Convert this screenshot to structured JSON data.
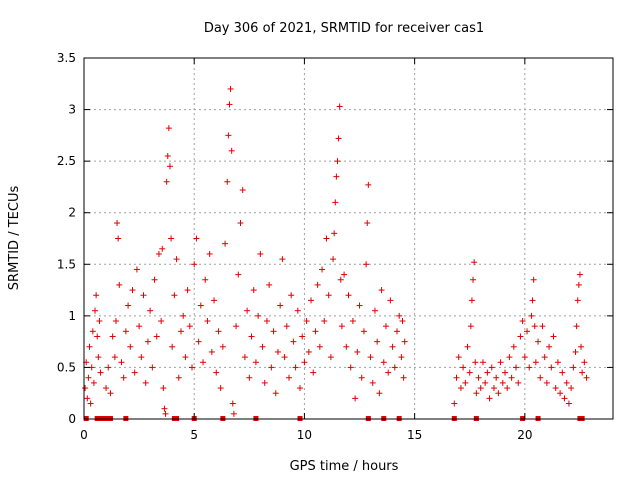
{
  "chart_data": {
    "type": "scatter",
    "title": "Day 306 of 2021, SRMTID for receiver cas1",
    "xlabel": "GPS time / hours",
    "ylabel": "SRMTID / TECUs",
    "xlim": [
      0,
      24
    ],
    "ylim": [
      0,
      3.5
    ],
    "x_ticks": [
      0,
      5,
      10,
      15,
      20
    ],
    "x_tick_labels": [
      "0",
      "5",
      "10",
      "15",
      "20"
    ],
    "y_ticks": [
      0,
      0.5,
      1,
      1.5,
      2,
      2.5,
      3,
      3.5
    ],
    "y_tick_labels": [
      "0",
      "0.5",
      "1",
      "1.5",
      "2",
      "2.5",
      "3",
      "3.5"
    ],
    "grid": true,
    "color": "#e00000",
    "marker": "plus",
    "series": [
      {
        "name": "SRMTID",
        "points": [
          [
            0.05,
            0.3
          ],
          [
            0.1,
            0.55
          ],
          [
            0.15,
            0.2
          ],
          [
            0.2,
            0.4
          ],
          [
            0.25,
            0.7
          ],
          [
            0.3,
            0.15
          ],
          [
            0.35,
            0.5
          ],
          [
            0.4,
            0.85
          ],
          [
            0.45,
            0.35
          ],
          [
            0.5,
            1.05
          ],
          [
            0.55,
            1.2
          ],
          [
            0.6,
            0.8
          ],
          [
            0.65,
            0.6
          ],
          [
            0.7,
            0.95
          ],
          [
            0.75,
            0.45
          ],
          [
            1.0,
            0.3
          ],
          [
            1.1,
            0.5
          ],
          [
            1.2,
            0.25
          ],
          [
            1.3,
            0.8
          ],
          [
            1.4,
            0.6
          ],
          [
            1.45,
            0.95
          ],
          [
            1.5,
            1.9
          ],
          [
            1.55,
            1.75
          ],
          [
            1.6,
            1.3
          ],
          [
            1.7,
            0.55
          ],
          [
            1.8,
            0.4
          ],
          [
            1.9,
            0.85
          ],
          [
            2.0,
            1.1
          ],
          [
            2.1,
            0.7
          ],
          [
            2.2,
            1.25
          ],
          [
            2.3,
            0.45
          ],
          [
            2.4,
            1.45
          ],
          [
            2.5,
            0.9
          ],
          [
            2.6,
            0.6
          ],
          [
            2.7,
            1.2
          ],
          [
            2.8,
            0.35
          ],
          [
            2.9,
            0.75
          ],
          [
            3.0,
            1.05
          ],
          [
            3.1,
            0.5
          ],
          [
            3.2,
            1.35
          ],
          [
            3.3,
            0.8
          ],
          [
            3.4,
            1.6
          ],
          [
            3.5,
            0.95
          ],
          [
            3.55,
            1.65
          ],
          [
            3.6,
            0.3
          ],
          [
            3.65,
            0.1
          ],
          [
            3.7,
            0.05
          ],
          [
            3.75,
            2.3
          ],
          [
            3.8,
            2.55
          ],
          [
            3.85,
            2.82
          ],
          [
            3.9,
            2.45
          ],
          [
            3.95,
            1.75
          ],
          [
            4.0,
            0.7
          ],
          [
            4.1,
            1.2
          ],
          [
            4.2,
            1.55
          ],
          [
            4.3,
            0.4
          ],
          [
            4.4,
            0.85
          ],
          [
            4.5,
            1.0
          ],
          [
            4.6,
            0.6
          ],
          [
            4.7,
            1.25
          ],
          [
            4.8,
            0.9
          ],
          [
            4.9,
            0.5
          ],
          [
            5.0,
            1.5
          ],
          [
            5.1,
            1.75
          ],
          [
            5.2,
            0.75
          ],
          [
            5.3,
            1.1
          ],
          [
            5.4,
            0.55
          ],
          [
            5.5,
            1.35
          ],
          [
            5.6,
            0.95
          ],
          [
            5.7,
            1.6
          ],
          [
            5.8,
            0.65
          ],
          [
            5.9,
            1.15
          ],
          [
            6.0,
            0.45
          ],
          [
            6.1,
            0.85
          ],
          [
            6.2,
            0.3
          ],
          [
            6.3,
            0.7
          ],
          [
            6.4,
            1.7
          ],
          [
            6.5,
            2.3
          ],
          [
            6.55,
            2.75
          ],
          [
            6.6,
            3.05
          ],
          [
            6.65,
            3.2
          ],
          [
            6.7,
            2.6
          ],
          [
            6.75,
            0.15
          ],
          [
            6.8,
            0.05
          ],
          [
            6.9,
            0.9
          ],
          [
            7.0,
            1.4
          ],
          [
            7.1,
            1.9
          ],
          [
            7.2,
            2.22
          ],
          [
            7.3,
            0.6
          ],
          [
            7.4,
            1.05
          ],
          [
            7.5,
            0.4
          ],
          [
            7.6,
            0.8
          ],
          [
            7.7,
            1.25
          ],
          [
            7.8,
            0.55
          ],
          [
            7.9,
            1.0
          ],
          [
            8.0,
            1.6
          ],
          [
            8.1,
            0.7
          ],
          [
            8.2,
            0.35
          ],
          [
            8.3,
            0.95
          ],
          [
            8.4,
            1.3
          ],
          [
            8.5,
            0.5
          ],
          [
            8.6,
            0.85
          ],
          [
            8.7,
            0.25
          ],
          [
            8.8,
            0.65
          ],
          [
            8.9,
            1.1
          ],
          [
            9.0,
            1.55
          ],
          [
            9.1,
            0.6
          ],
          [
            9.2,
            0.9
          ],
          [
            9.3,
            0.4
          ],
          [
            9.4,
            1.2
          ],
          [
            9.5,
            0.75
          ],
          [
            9.6,
            0.5
          ],
          [
            9.7,
            1.05
          ],
          [
            9.8,
            0.3
          ],
          [
            9.9,
            0.8
          ],
          [
            10.0,
            0.55
          ],
          [
            10.1,
            0.95
          ],
          [
            10.2,
            0.65
          ],
          [
            10.3,
            1.15
          ],
          [
            10.4,
            0.45
          ],
          [
            10.5,
            0.85
          ],
          [
            10.6,
            1.3
          ],
          [
            10.7,
            0.7
          ],
          [
            10.8,
            1.45
          ],
          [
            10.9,
            0.95
          ],
          [
            11.0,
            1.75
          ],
          [
            11.1,
            1.2
          ],
          [
            11.2,
            0.6
          ],
          [
            11.3,
            1.55
          ],
          [
            11.35,
            1.8
          ],
          [
            11.4,
            2.1
          ],
          [
            11.45,
            2.35
          ],
          [
            11.5,
            2.5
          ],
          [
            11.55,
            2.72
          ],
          [
            11.6,
            3.03
          ],
          [
            11.65,
            1.35
          ],
          [
            11.7,
            0.9
          ],
          [
            11.8,
            1.4
          ],
          [
            11.9,
            0.7
          ],
          [
            12.0,
            1.2
          ],
          [
            12.1,
            0.5
          ],
          [
            12.2,
            0.95
          ],
          [
            12.3,
            0.2
          ],
          [
            12.4,
            0.65
          ],
          [
            12.5,
            1.1
          ],
          [
            12.6,
            0.4
          ],
          [
            12.7,
            0.85
          ],
          [
            12.8,
            1.5
          ],
          [
            12.85,
            1.9
          ],
          [
            12.9,
            2.27
          ],
          [
            13.0,
            0.6
          ],
          [
            13.1,
            0.35
          ],
          [
            13.2,
            1.05
          ],
          [
            13.3,
            0.75
          ],
          [
            13.4,
            0.25
          ],
          [
            13.5,
            1.25
          ],
          [
            13.6,
            0.55
          ],
          [
            13.7,
            0.9
          ],
          [
            13.8,
            0.45
          ],
          [
            13.9,
            1.15
          ],
          [
            14.0,
            0.7
          ],
          [
            14.1,
            0.5
          ],
          [
            14.2,
            0.85
          ],
          [
            14.3,
            1.0
          ],
          [
            14.4,
            0.6
          ],
          [
            14.45,
            0.95
          ],
          [
            14.5,
            0.4
          ],
          [
            14.55,
            0.75
          ],
          [
            16.8,
            0.15
          ],
          [
            16.9,
            0.4
          ],
          [
            17.0,
            0.6
          ],
          [
            17.1,
            0.3
          ],
          [
            17.2,
            0.5
          ],
          [
            17.3,
            0.35
          ],
          [
            17.4,
            0.7
          ],
          [
            17.5,
            0.45
          ],
          [
            17.55,
            0.9
          ],
          [
            17.6,
            1.15
          ],
          [
            17.65,
            1.35
          ],
          [
            17.7,
            1.52
          ],
          [
            17.75,
            0.55
          ],
          [
            17.8,
            0.25
          ],
          [
            17.9,
            0.4
          ],
          [
            18.0,
            0.3
          ],
          [
            18.1,
            0.55
          ],
          [
            18.2,
            0.35
          ],
          [
            18.3,
            0.45
          ],
          [
            18.4,
            0.2
          ],
          [
            18.5,
            0.5
          ],
          [
            18.6,
            0.3
          ],
          [
            18.7,
            0.4
          ],
          [
            18.8,
            0.25
          ],
          [
            18.9,
            0.55
          ],
          [
            19.0,
            0.35
          ],
          [
            19.1,
            0.45
          ],
          [
            19.2,
            0.3
          ],
          [
            19.3,
            0.6
          ],
          [
            19.4,
            0.4
          ],
          [
            19.5,
            0.7
          ],
          [
            19.6,
            0.5
          ],
          [
            19.7,
            0.35
          ],
          [
            19.8,
            0.8
          ],
          [
            19.9,
            0.95
          ],
          [
            20.0,
            0.6
          ],
          [
            20.1,
            0.85
          ],
          [
            20.2,
            0.5
          ],
          [
            20.3,
            1.0
          ],
          [
            20.35,
            1.15
          ],
          [
            20.4,
            1.35
          ],
          [
            20.45,
            0.9
          ],
          [
            20.5,
            0.55
          ],
          [
            20.6,
            0.75
          ],
          [
            20.7,
            0.4
          ],
          [
            20.8,
            0.9
          ],
          [
            20.9,
            0.6
          ],
          [
            21.0,
            0.35
          ],
          [
            21.1,
            0.7
          ],
          [
            21.2,
            0.5
          ],
          [
            21.3,
            0.8
          ],
          [
            21.4,
            0.3
          ],
          [
            21.5,
            0.55
          ],
          [
            21.6,
            0.25
          ],
          [
            21.7,
            0.45
          ],
          [
            21.8,
            0.2
          ],
          [
            21.9,
            0.35
          ],
          [
            22.0,
            0.15
          ],
          [
            22.1,
            0.3
          ],
          [
            22.2,
            0.5
          ],
          [
            22.3,
            0.65
          ],
          [
            22.35,
            0.9
          ],
          [
            22.4,
            1.15
          ],
          [
            22.45,
            1.3
          ],
          [
            22.5,
            1.4
          ],
          [
            22.55,
            0.7
          ],
          [
            22.6,
            0.45
          ],
          [
            22.7,
            0.55
          ],
          [
            22.8,
            0.4
          ]
        ]
      }
    ],
    "gap_markers_x": [
      0.1,
      0.6,
      0.8,
      1.0,
      1.2,
      1.9,
      4.1,
      4.2,
      5.0,
      6.3,
      7.8,
      9.8,
      12.9,
      13.6,
      14.3,
      16.8,
      17.8,
      19.9,
      20.6,
      22.5,
      22.6
    ]
  }
}
